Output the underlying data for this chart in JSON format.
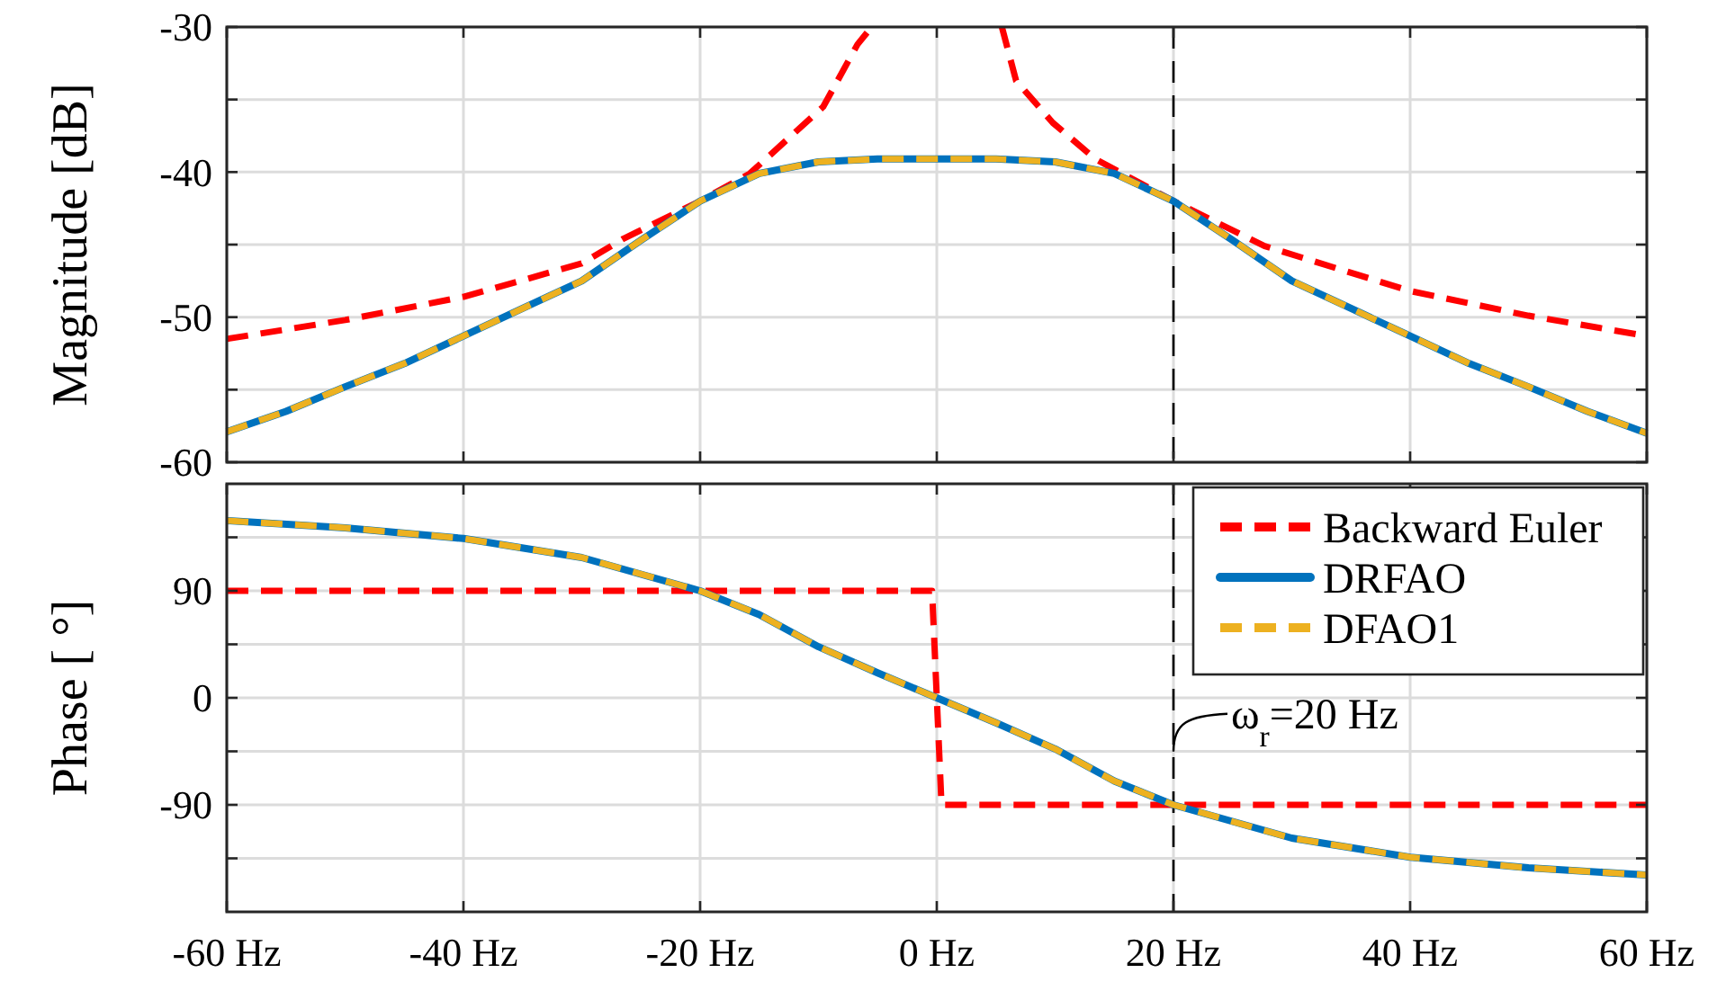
{
  "chart_data": [
    {
      "type": "line",
      "ylabel": "Magnitude [dB]",
      "xlim": [
        -60,
        60
      ],
      "ylim": [
        -60,
        -30
      ],
      "xticks": [
        {
          "value": -60,
          "label": null
        },
        {
          "value": -40,
          "label": null
        },
        {
          "value": -20,
          "label": null
        },
        {
          "value": 0,
          "label": null
        },
        {
          "value": 20,
          "label": null
        },
        {
          "value": 40,
          "label": null
        },
        {
          "value": 60,
          "label": null
        }
      ],
      "yticks": [
        -60,
        {
          "value": -55,
          "label": null
        },
        -50,
        {
          "value": -45,
          "label": null
        },
        -40,
        {
          "value": -35,
          "label": null
        },
        -30
      ],
      "grid": true,
      "legend": false,
      "tick_labels": "y",
      "ref_lines": [
        {
          "axis": "x",
          "value": 20,
          "color": "#000000",
          "line_style": "dashed"
        }
      ],
      "series": [
        {
          "color": "#ff0000",
          "line_style": "dashed",
          "x": [
            -60,
            -50,
            -40,
            -30,
            -26.5,
            -20,
            -15.8,
            -9.6,
            -6.7,
            -5.5,
            0,
            5.5,
            6.7,
            9.8,
            13.4,
            20,
            27.7,
            40,
            50,
            60
          ],
          "values": [
            -51.5,
            -50.2,
            -48.6,
            -46.3,
            -44.6,
            -42.0,
            -40.1,
            -35.5,
            -31.2,
            -30,
            null,
            -30,
            -33.7,
            -36.6,
            -39.1,
            -42.0,
            -45.1,
            -48.2,
            -49.9,
            -51.3
          ]
        },
        {
          "color": "#0072bd",
          "line_style": "solid",
          "x": [
            -60,
            -55,
            -50,
            -45,
            -40,
            -35,
            -30,
            -25,
            -20,
            -15,
            -10,
            -5,
            0,
            5,
            10,
            15,
            20,
            25,
            30,
            35,
            40,
            45,
            50,
            55,
            60
          ],
          "values": [
            -57.9,
            -56.5,
            -54.8,
            -53.2,
            -51.3,
            -49.4,
            -47.5,
            -44.7,
            -42.0,
            -40.1,
            -39.3,
            -39.1,
            -39.1,
            -39.1,
            -39.3,
            -40.1,
            -42.0,
            -44.7,
            -47.5,
            -49.4,
            -51.3,
            -53.2,
            -54.8,
            -56.5,
            -58.0
          ]
        },
        {
          "color": "#edb120",
          "line_style": "dashed",
          "x": [
            -60,
            -55,
            -50,
            -45,
            -40,
            -35,
            -30,
            -25,
            -20,
            -15,
            -10,
            -5,
            0,
            5,
            10,
            15,
            20,
            25,
            30,
            35,
            40,
            45,
            50,
            55,
            60
          ],
          "values": [
            -57.9,
            -56.5,
            -54.8,
            -53.2,
            -51.3,
            -49.4,
            -47.5,
            -44.7,
            -42.0,
            -40.1,
            -39.3,
            -39.1,
            -39.1,
            -39.1,
            -39.3,
            -40.1,
            -42.0,
            -44.7,
            -47.5,
            -49.4,
            -51.3,
            -53.2,
            -54.8,
            -56.5,
            -58.0
          ]
        }
      ]
    },
    {
      "type": "line",
      "ylabel": "Phase [ °]",
      "xlim": [
        -60,
        60
      ],
      "ylim": [
        -180,
        180
      ],
      "xticks": [
        {
          "value": -60,
          "label": "-60 Hz"
        },
        {
          "value": -40,
          "label": "-40 Hz"
        },
        {
          "value": -20,
          "label": "-20 Hz"
        },
        {
          "value": 0,
          "label": "0 Hz"
        },
        {
          "value": 20,
          "label": "20 Hz"
        },
        {
          "value": 40,
          "label": "40 Hz"
        },
        {
          "value": 60,
          "label": "60 Hz"
        }
      ],
      "yticks": [
        {
          "value": -135,
          "label": null
        },
        -90,
        {
          "value": -45,
          "label": null
        },
        0,
        {
          "value": 45,
          "label": null
        },
        90,
        {
          "value": 135,
          "label": null
        }
      ],
      "grid": true,
      "legend": "top right",
      "ref_lines": [
        {
          "axis": "x",
          "value": 20,
          "color": "#000000",
          "line_style": "dashed",
          "label": "ω$_{r}$=20 Hz"
        }
      ],
      "series": [
        {
          "name": "Backward Euler",
          "color": "#ff0000",
          "line_style": "dashed",
          "x": [
            -60,
            -0.4,
            0.4,
            60
          ],
          "values": [
            90,
            90,
            -90,
            -90
          ]
        },
        {
          "name": "DRFAO",
          "color": "#0072bd",
          "line_style": "solid",
          "x": [
            -60,
            -50,
            -40,
            -30,
            -20,
            -15,
            -10,
            -5,
            0,
            5,
            10,
            15,
            20,
            30,
            40,
            50,
            60
          ],
          "values": [
            149,
            143,
            134,
            118,
            90,
            70,
            43,
            21,
            0,
            -21,
            -43,
            -70,
            -90,
            -118,
            -134,
            -143,
            -149
          ]
        },
        {
          "name": "DFAO1",
          "color": "#edb120",
          "line_style": "dashed",
          "x": [
            -60,
            -50,
            -40,
            -30,
            -20,
            -15,
            -10,
            -5,
            0,
            5,
            10,
            15,
            20,
            30,
            40,
            50,
            60
          ],
          "values": [
            149,
            143,
            134,
            118,
            90,
            70,
            43,
            21,
            0,
            -21,
            -43,
            -70,
            -90,
            -118,
            -134,
            -143,
            -149
          ]
        }
      ]
    }
  ]
}
